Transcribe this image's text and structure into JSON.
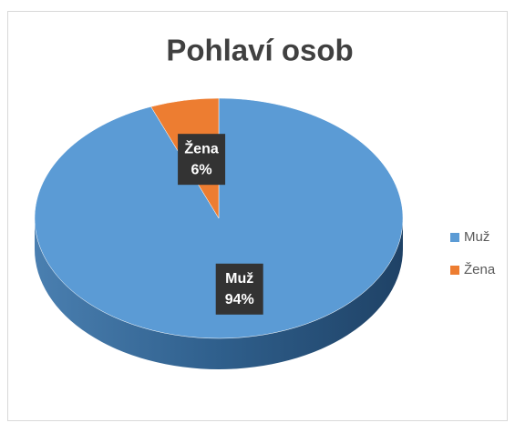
{
  "chart_data": {
    "type": "pie",
    "title": "Pohlaví osob",
    "categories": [
      "Muž",
      "Žena"
    ],
    "values": [
      94,
      6
    ],
    "value_labels": [
      "94%",
      "6%"
    ],
    "colors": [
      "#5b9bd5",
      "#ed7d31"
    ],
    "legend": "right"
  }
}
